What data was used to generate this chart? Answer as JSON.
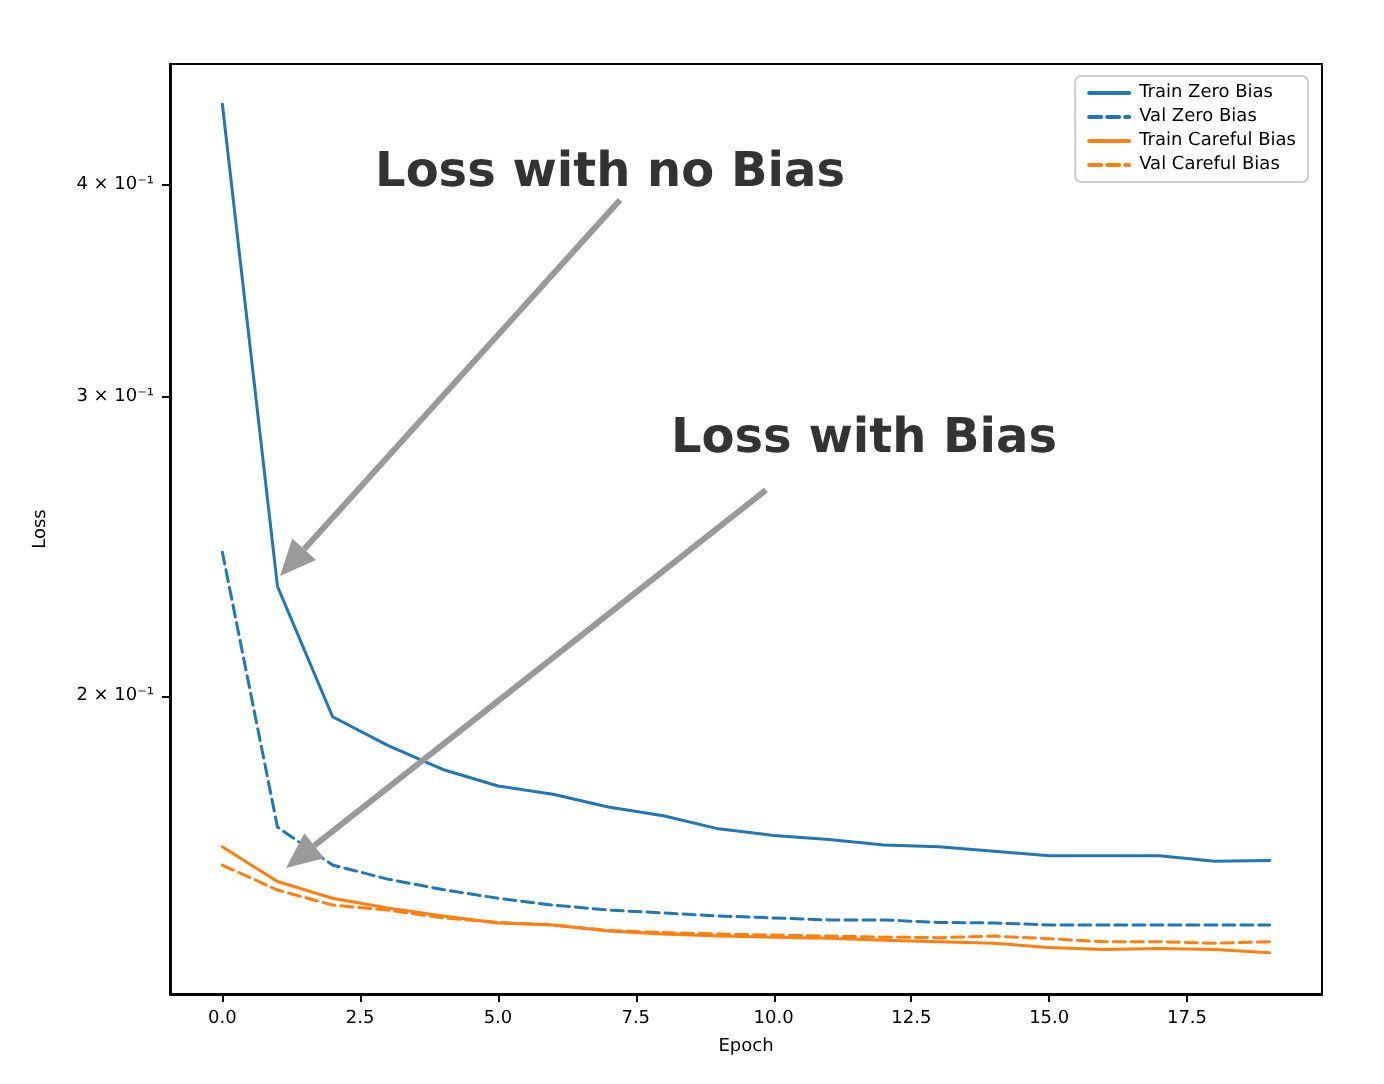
{
  "chart_data": {
    "type": "line",
    "xlabel": "Epoch",
    "ylabel": "Loss",
    "x": [
      0,
      1,
      2,
      3,
      4,
      5,
      6,
      7,
      8,
      9,
      10,
      11,
      12,
      13,
      14,
      15,
      16,
      17,
      18,
      19
    ],
    "series": [
      {
        "name": "Train Zero Bias",
        "color": "#1f77b4",
        "line_style": "solid",
        "values": [
          0.446,
          0.232,
          0.1944,
          0.187,
          0.181,
          0.177,
          0.175,
          0.172,
          0.17,
          0.167,
          0.1655,
          0.1646,
          0.1634,
          0.163,
          0.162,
          0.161,
          0.161,
          0.161,
          0.1598,
          0.16
        ]
      },
      {
        "name": "Val Zero Bias",
        "color": "#1f77b4",
        "line_style": "dashed",
        "values": [
          0.243,
          0.1674,
          0.159,
          0.156,
          0.1538,
          0.152,
          0.1506,
          0.1496,
          0.149,
          0.1484,
          0.148,
          0.1476,
          0.1476,
          0.1471,
          0.147,
          0.1466,
          0.1466,
          0.1466,
          0.1466,
          0.1466
        ]
      },
      {
        "name": "Train Careful Bias",
        "color": "#ff7f0e",
        "line_style": "solid",
        "values": [
          0.163,
          0.1555,
          0.152,
          0.15,
          0.1484,
          0.147,
          0.1466,
          0.1454,
          0.1448,
          0.1444,
          0.1442,
          0.144,
          0.1436,
          0.1433,
          0.143,
          0.1422,
          0.1418,
          0.142,
          0.1418,
          0.1412
        ]
      },
      {
        "name": "Val Careful Bias",
        "color": "#ff7f0e",
        "line_style": "dashed",
        "values": [
          0.159,
          0.1537,
          0.1506,
          0.1496,
          0.148,
          0.1471,
          0.1466,
          0.1455,
          0.1451,
          0.1448,
          0.1446,
          0.1444,
          0.1442,
          0.1441,
          0.1444,
          0.1439,
          0.1433,
          0.1433,
          0.143,
          0.1433
        ]
      }
    ],
    "log": "y",
    "xlim": [
      -0.95,
      19.95
    ],
    "xticks": [
      {
        "value": 0,
        "label": "0.0"
      },
      {
        "value": 2.5,
        "label": "2.5"
      },
      {
        "value": 5,
        "label": "5.0"
      },
      {
        "value": 7.5,
        "label": "7.5"
      },
      {
        "value": 10,
        "label": "10.0"
      },
      {
        "value": 12.5,
        "label": "12.5"
      },
      {
        "value": 15,
        "label": "15.0"
      },
      {
        "value": 17.5,
        "label": "17.5"
      }
    ],
    "ylim": [
      0.1335,
      0.471
    ],
    "yticks": [
      {
        "value": 0.2,
        "label": "2 × 10⁻¹"
      },
      {
        "value": 0.3,
        "label": "3 × 10⁻¹"
      },
      {
        "value": 0.4,
        "label": "4 × 10⁻¹"
      }
    ],
    "grid": false,
    "legend": "top right",
    "marker": "none",
    "annotations": [
      "Loss with no Bias",
      "Loss with Bias"
    ]
  }
}
